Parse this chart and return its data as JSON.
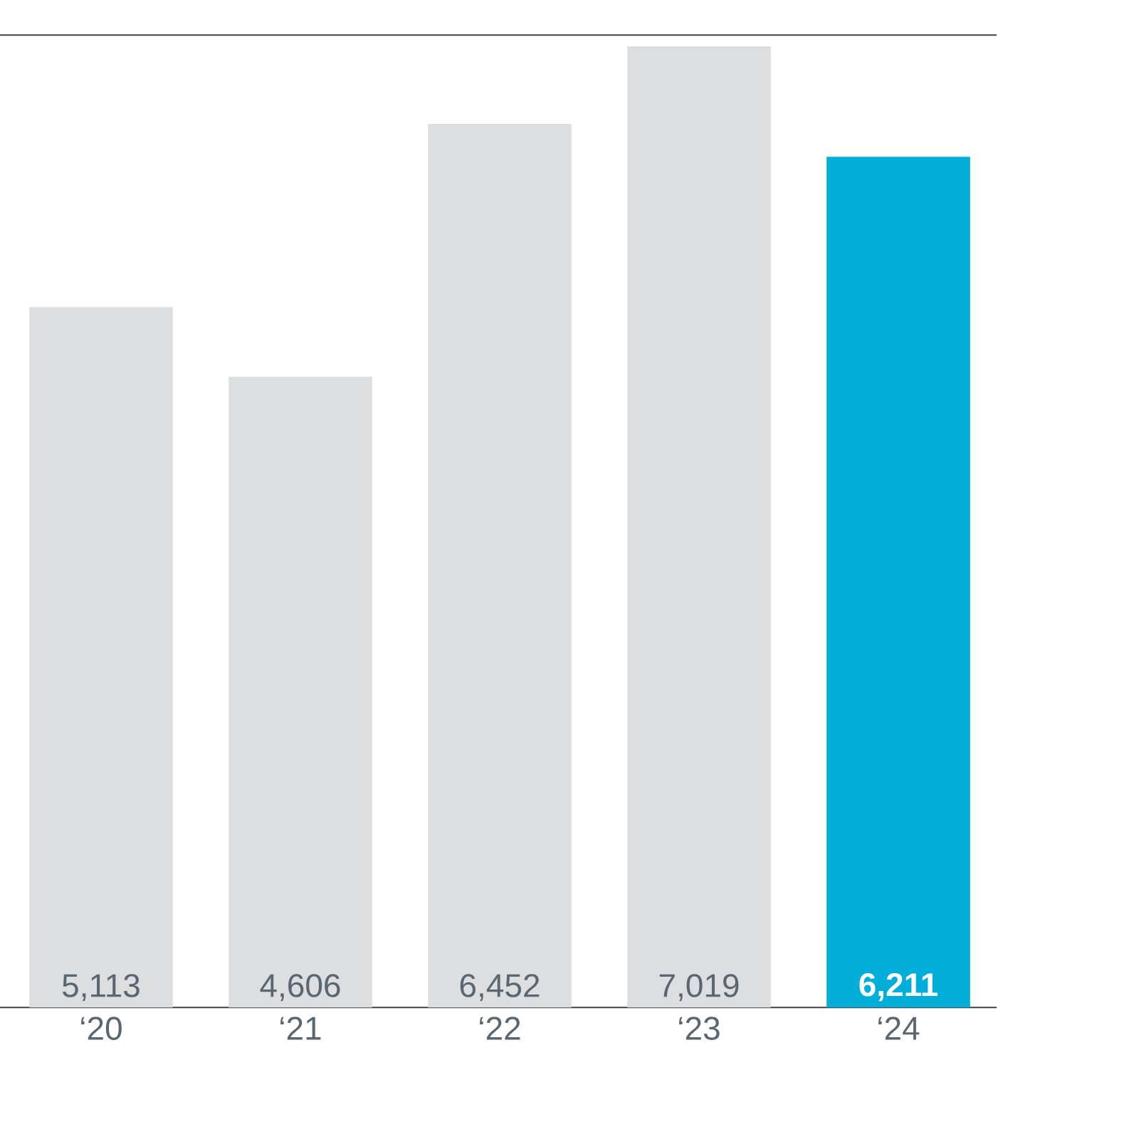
{
  "chart_data": {
    "type": "bar",
    "categories": [
      "‘20",
      "‘21",
      "‘22",
      "‘23",
      "‘24"
    ],
    "values": [
      5113,
      4606,
      6452,
      7019,
      6211
    ],
    "colors": [
      "#dcdee0",
      "#dcdee0",
      "#dcdee0",
      "#dcdee0",
      "#00aed9"
    ],
    "value_labels": [
      "5,113",
      "4,606",
      "6,452",
      "7,019",
      "6,211"
    ],
    "ylim": [
      0,
      7100
    ]
  }
}
